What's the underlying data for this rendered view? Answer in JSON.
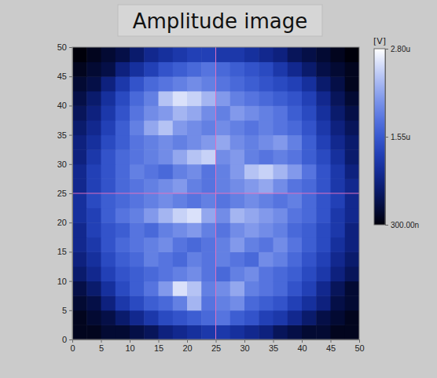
{
  "chart_data": {
    "type": "heatmap",
    "title": "Amplitude image",
    "xlim": [
      0,
      50
    ],
    "ylim": [
      0,
      50
    ],
    "xticks": [
      0,
      5,
      10,
      15,
      20,
      25,
      30,
      35,
      40,
      45,
      50
    ],
    "yticks": [
      0,
      5,
      10,
      15,
      20,
      25,
      30,
      35,
      40,
      45,
      50
    ],
    "cursor_x": 25,
    "cursor_y": 25,
    "colorbar_label": "[V]",
    "colorbar_range": [
      0.3,
      2.8
    ],
    "colorbar_ticks": [
      {
        "value": 0.3,
        "label": "300.00n"
      },
      {
        "value": 1.55,
        "label": "1.55u"
      },
      {
        "value": 2.8,
        "label": "2.80u"
      }
    ],
    "cells": [
      [
        0.4,
        0.4,
        0.5,
        0.5,
        0.6,
        0.7,
        0.9,
        1.0,
        1.1,
        1.2,
        1.2,
        1.1,
        1.0,
        0.9,
        0.7,
        0.6,
        0.5,
        0.5,
        0.4,
        0.4
      ],
      [
        0.4,
        0.5,
        0.6,
        0.8,
        1.0,
        1.2,
        1.4,
        1.5,
        1.6,
        1.7,
        1.8,
        1.6,
        1.5,
        1.3,
        1.2,
        1.0,
        0.8,
        0.6,
        0.5,
        0.4
      ],
      [
        0.5,
        0.6,
        0.9,
        1.2,
        1.4,
        1.6,
        1.7,
        1.9,
        2.3,
        1.8,
        1.9,
        2.0,
        1.7,
        1.6,
        1.5,
        1.3,
        1.1,
        0.9,
        0.6,
        0.5
      ],
      [
        0.6,
        0.8,
        1.1,
        1.4,
        1.6,
        1.8,
        2.1,
        2.6,
        2.4,
        1.9,
        2.0,
        2.2,
        1.9,
        1.8,
        1.7,
        1.5,
        1.3,
        1.0,
        0.7,
        0.5
      ],
      [
        0.8,
        1.0,
        1.3,
        1.5,
        1.6,
        1.7,
        1.8,
        1.9,
        2.0,
        1.8,
        1.7,
        1.9,
        2.0,
        1.8,
        1.7,
        1.6,
        1.4,
        1.2,
        0.9,
        0.7
      ],
      [
        0.9,
        1.1,
        1.4,
        1.6,
        1.7,
        1.9,
        1.8,
        1.7,
        1.9,
        1.8,
        1.9,
        1.8,
        1.7,
        2.0,
        1.9,
        1.7,
        1.5,
        1.3,
        1.0,
        0.8
      ],
      [
        1.0,
        1.2,
        1.5,
        1.7,
        1.8,
        1.9,
        2.0,
        1.8,
        1.7,
        1.8,
        1.9,
        2.1,
        1.9,
        1.8,
        2.0,
        1.8,
        1.6,
        1.4,
        1.1,
        0.9
      ],
      [
        1.0,
        1.3,
        1.5,
        1.6,
        1.8,
        1.7,
        1.9,
        2.0,
        2.1,
        1.9,
        1.8,
        2.0,
        2.1,
        2.0,
        1.9,
        1.7,
        1.6,
        1.4,
        1.2,
        0.9
      ],
      [
        1.1,
        1.3,
        1.6,
        1.8,
        1.9,
        2.1,
        2.3,
        2.5,
        2.6,
        2.2,
        2.0,
        2.3,
        2.2,
        2.1,
        2.0,
        1.8,
        1.7,
        1.5,
        1.2,
        1.0
      ],
      [
        1.1,
        1.4,
        1.6,
        1.7,
        1.8,
        1.9,
        2.0,
        1.9,
        1.8,
        1.9,
        1.8,
        1.9,
        2.0,
        1.9,
        1.8,
        1.9,
        1.7,
        1.5,
        1.3,
        1.0
      ],
      [
        1.0,
        1.3,
        1.5,
        1.7,
        1.8,
        1.9,
        2.0,
        2.1,
        1.9,
        1.8,
        1.9,
        2.0,
        2.1,
        2.2,
        2.0,
        1.8,
        1.7,
        1.5,
        1.2,
        1.0
      ],
      [
        1.0,
        1.3,
        1.5,
        1.7,
        1.9,
        1.8,
        1.7,
        1.9,
        2.0,
        1.8,
        1.9,
        2.1,
        2.4,
        2.5,
        2.3,
        2.1,
        1.8,
        1.5,
        1.2,
        0.9
      ],
      [
        0.9,
        1.2,
        1.5,
        1.7,
        1.8,
        1.9,
        2.0,
        2.2,
        2.4,
        2.5,
        2.0,
        2.1,
        1.9,
        1.8,
        1.9,
        1.8,
        1.6,
        1.4,
        1.1,
        0.8
      ],
      [
        0.9,
        1.1,
        1.4,
        1.6,
        1.8,
        1.9,
        2.0,
        1.9,
        2.0,
        2.1,
        2.2,
        2.0,
        1.9,
        2.0,
        2.1,
        1.9,
        1.6,
        1.3,
        1.0,
        0.8
      ],
      [
        0.8,
        1.0,
        1.3,
        1.6,
        1.9,
        2.2,
        2.4,
        2.1,
        2.0,
        1.9,
        2.0,
        1.9,
        1.8,
        1.9,
        1.8,
        1.7,
        1.5,
        1.2,
        0.9,
        0.7
      ],
      [
        0.7,
        0.9,
        1.2,
        1.5,
        1.8,
        2.0,
        2.1,
        2.3,
        2.2,
        2.0,
        1.9,
        2.1,
        2.0,
        1.9,
        1.8,
        1.6,
        1.4,
        1.1,
        0.8,
        0.6
      ],
      [
        0.6,
        0.8,
        1.1,
        1.4,
        1.7,
        1.9,
        2.4,
        2.6,
        2.5,
        2.3,
        2.1,
        1.9,
        1.8,
        1.7,
        1.6,
        1.5,
        1.3,
        1.0,
        0.7,
        0.5
      ],
      [
        0.5,
        0.6,
        0.9,
        1.2,
        1.5,
        1.7,
        1.8,
        1.9,
        2.0,
        1.9,
        1.8,
        1.7,
        1.6,
        1.5,
        1.4,
        1.3,
        1.1,
        0.8,
        0.6,
        0.4
      ],
      [
        0.4,
        0.5,
        0.6,
        0.9,
        1.1,
        1.3,
        1.5,
        1.6,
        1.7,
        1.8,
        1.7,
        1.6,
        1.5,
        1.4,
        1.2,
        1.0,
        0.8,
        0.6,
        0.5,
        0.4
      ],
      [
        0.3,
        0.4,
        0.5,
        0.6,
        0.8,
        1.0,
        1.1,
        1.2,
        1.3,
        1.3,
        1.2,
        1.2,
        1.1,
        1.0,
        0.9,
        0.7,
        0.6,
        0.5,
        0.4,
        0.3
      ]
    ]
  }
}
